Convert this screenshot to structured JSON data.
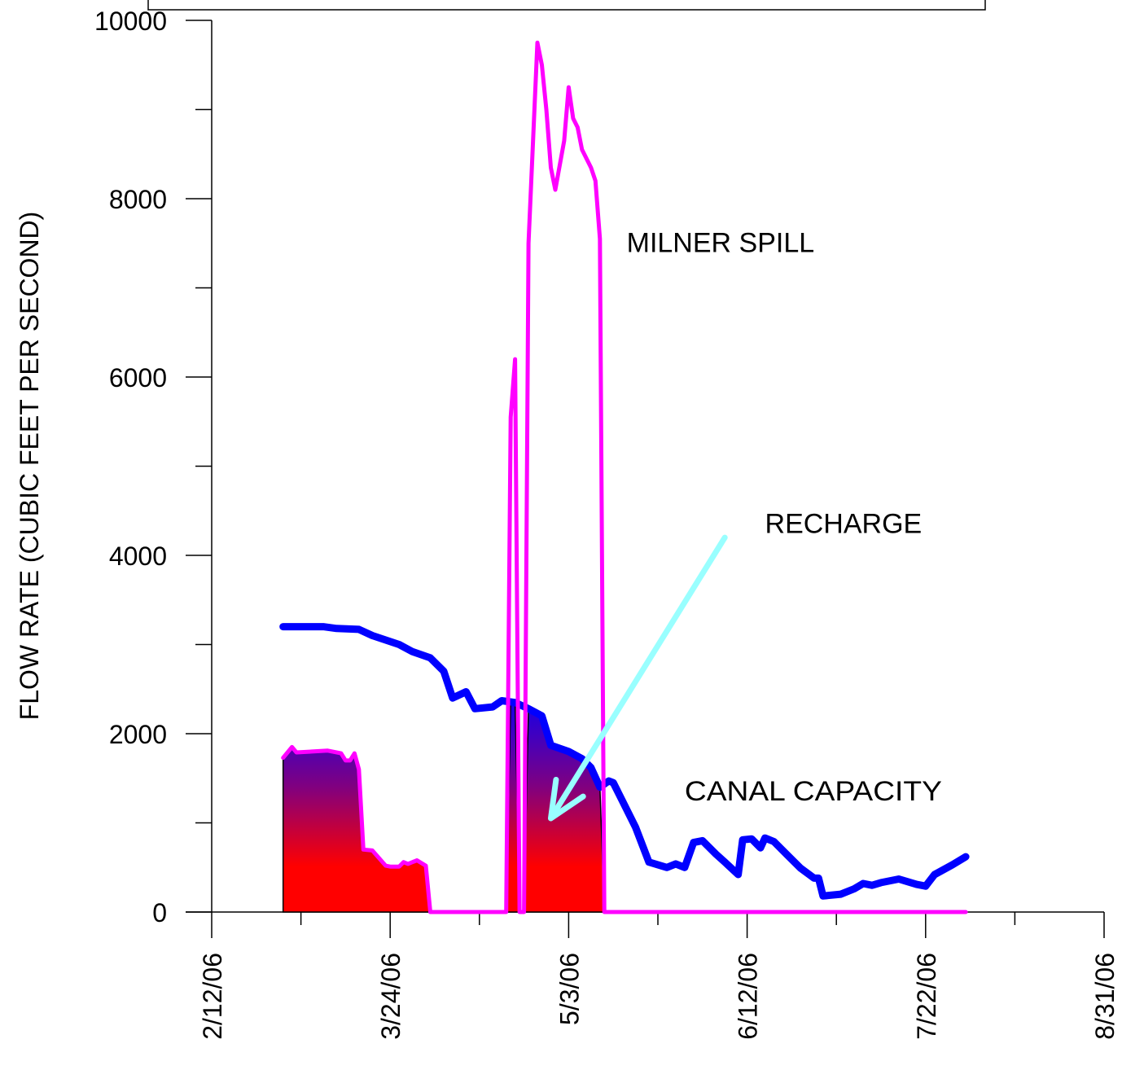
{
  "chart_data": {
    "type": "area",
    "title": "",
    "xlabel": "",
    "ylabel": "FLOW RATE  (CUBIC FEET PER SECOND)",
    "x_axis": {
      "type": "date",
      "min": "2006-02-12",
      "max": "2006-08-31",
      "tick_labels": [
        "2/12/06",
        "3/24/06",
        "5/3/06",
        "6/12/06",
        "7/22/06",
        "8/31/06"
      ],
      "tick_dates": [
        "2006-02-12",
        "2006-03-24",
        "2006-05-03",
        "2006-06-12",
        "2006-07-22",
        "2006-08-31"
      ]
    },
    "y_axis": {
      "min": 0,
      "max": 10000,
      "tick_labels": [
        "0",
        "2000",
        "4000",
        "6000",
        "8000",
        "10000"
      ],
      "tick_values": [
        0,
        2000,
        4000,
        6000,
        8000,
        10000
      ]
    },
    "grid": false,
    "series": [
      {
        "name": "CANAL CAPACITY",
        "color": "#0000ff",
        "points": [
          [
            "2006-02-28",
            3200
          ],
          [
            "2006-03-04",
            3200
          ],
          [
            "2006-03-09",
            3200
          ],
          [
            "2006-03-12",
            3180
          ],
          [
            "2006-03-17",
            3170
          ],
          [
            "2006-03-20",
            3100
          ],
          [
            "2006-03-26",
            3000
          ],
          [
            "2006-03-29",
            2920
          ],
          [
            "2006-04-02",
            2850
          ],
          [
            "2006-04-05",
            2700
          ],
          [
            "2006-04-07",
            2400
          ],
          [
            "2006-04-10",
            2470
          ],
          [
            "2006-04-12",
            2280
          ],
          [
            "2006-04-16",
            2300
          ],
          [
            "2006-04-18",
            2370
          ],
          [
            "2006-04-21",
            2350
          ],
          [
            "2006-04-24",
            2280
          ],
          [
            "2006-04-27",
            2200
          ],
          [
            "2006-04-29",
            1870
          ],
          [
            "2006-05-03",
            1800
          ],
          [
            "2006-05-06",
            1720
          ],
          [
            "2006-05-08",
            1620
          ],
          [
            "2006-05-10",
            1400
          ],
          [
            "2006-05-12",
            1470
          ],
          [
            "2006-05-13",
            1450
          ],
          [
            "2006-05-15",
            1250
          ],
          [
            "2006-05-18",
            950
          ],
          [
            "2006-05-21",
            560
          ],
          [
            "2006-05-25",
            500
          ],
          [
            "2006-05-27",
            540
          ],
          [
            "2006-05-29",
            500
          ],
          [
            "2006-05-31",
            780
          ],
          [
            "2006-06-02",
            800
          ],
          [
            "2006-06-05",
            650
          ],
          [
            "2006-06-07",
            560
          ],
          [
            "2006-06-10",
            420
          ],
          [
            "2006-06-11",
            810
          ],
          [
            "2006-06-13",
            820
          ],
          [
            "2006-06-15",
            720
          ],
          [
            "2006-06-16",
            830
          ],
          [
            "2006-06-18",
            790
          ],
          [
            "2006-06-21",
            640
          ],
          [
            "2006-06-24",
            490
          ],
          [
            "2006-06-27",
            380
          ],
          [
            "2006-06-28",
            380
          ],
          [
            "2006-06-29",
            180
          ],
          [
            "2006-07-03",
            200
          ],
          [
            "2006-07-06",
            260
          ],
          [
            "2006-07-08",
            320
          ],
          [
            "2006-07-10",
            300
          ],
          [
            "2006-07-12",
            330
          ],
          [
            "2006-07-16",
            370
          ],
          [
            "2006-07-18",
            340
          ],
          [
            "2006-07-20",
            310
          ],
          [
            "2006-07-22",
            290
          ],
          [
            "2006-07-24",
            420
          ],
          [
            "2006-07-28",
            530
          ],
          [
            "2006-07-31",
            620
          ]
        ]
      },
      {
        "name": "MILNER SPILL",
        "color": "#ff00ff",
        "points": [
          [
            "2006-02-28",
            1730
          ],
          [
            "2006-03-02",
            1850
          ],
          [
            "2006-03-03",
            1790
          ],
          [
            "2006-03-10",
            1810
          ],
          [
            "2006-03-13",
            1780
          ],
          [
            "2006-03-14",
            1700
          ],
          [
            "2006-03-15",
            1700
          ],
          [
            "2006-03-16",
            1780
          ],
          [
            "2006-03-17",
            1600
          ],
          [
            "2006-03-18",
            700
          ],
          [
            "2006-03-20",
            690
          ],
          [
            "2006-03-23",
            520
          ],
          [
            "2006-03-24",
            510
          ],
          [
            "2006-03-26",
            510
          ],
          [
            "2006-03-27",
            560
          ],
          [
            "2006-03-28",
            540
          ],
          [
            "2006-03-30",
            580
          ],
          [
            "2006-04-01",
            520
          ],
          [
            "2006-04-02",
            0
          ],
          [
            "2006-04-19",
            0
          ],
          [
            "2006-04-20",
            5550
          ],
          [
            "2006-04-21",
            6200
          ],
          [
            "2006-04-22",
            0
          ],
          [
            "2006-04-23",
            0
          ],
          [
            "2006-04-24",
            7500
          ],
          [
            "2006-04-26",
            9750
          ],
          [
            "2006-04-27",
            9500
          ],
          [
            "2006-04-28",
            9000
          ],
          [
            "2006-04-29",
            8350
          ],
          [
            "2006-04-30",
            8100
          ],
          [
            "2006-05-02",
            8650
          ],
          [
            "2006-05-03",
            9250
          ],
          [
            "2006-05-04",
            8900
          ],
          [
            "2006-05-05",
            8800
          ],
          [
            "2006-05-06",
            8550
          ],
          [
            "2006-05-08",
            8350
          ],
          [
            "2006-05-09",
            8200
          ],
          [
            "2006-05-10",
            7550
          ],
          [
            "2006-05-11",
            0
          ],
          [
            "2006-07-31",
            0
          ]
        ]
      },
      {
        "name": "RECHARGE",
        "fill": "gradient",
        "points": [
          [
            "2006-02-28",
            1730
          ],
          [
            "2006-03-02",
            1850
          ],
          [
            "2006-03-03",
            1790
          ],
          [
            "2006-03-10",
            1810
          ],
          [
            "2006-03-13",
            1780
          ],
          [
            "2006-03-14",
            1700
          ],
          [
            "2006-03-15",
            1700
          ],
          [
            "2006-03-16",
            1780
          ],
          [
            "2006-03-17",
            1600
          ],
          [
            "2006-03-18",
            700
          ],
          [
            "2006-03-20",
            690
          ],
          [
            "2006-03-23",
            520
          ],
          [
            "2006-03-24",
            510
          ],
          [
            "2006-03-26",
            510
          ],
          [
            "2006-03-27",
            560
          ],
          [
            "2006-03-28",
            540
          ],
          [
            "2006-03-30",
            580
          ],
          [
            "2006-04-01",
            520
          ],
          [
            "2006-04-02",
            0
          ],
          [
            "2006-04-19",
            0
          ],
          [
            "2006-04-20",
            2370
          ],
          [
            "2006-04-21",
            2370
          ],
          [
            "2006-04-22",
            0
          ],
          [
            "2006-04-23",
            0
          ],
          [
            "2006-04-24",
            2300
          ],
          [
            "2006-04-27",
            2200
          ],
          [
            "2006-04-29",
            1870
          ],
          [
            "2006-05-03",
            1800
          ],
          [
            "2006-05-06",
            1720
          ],
          [
            "2006-05-08",
            1620
          ],
          [
            "2006-05-10",
            1400
          ],
          [
            "2006-05-11",
            0
          ]
        ]
      }
    ],
    "annotations": [
      {
        "text": "MILNER SPILL",
        "x": "2006-05-16",
        "y": 7400
      },
      {
        "text": "RECHARGE",
        "x": "2006-06-16",
        "y": 4250
      },
      {
        "text": "CANAL CAPACITY",
        "x": "2006-05-29",
        "y": 1250
      }
    ],
    "arrow": {
      "color": "#99ffff",
      "from": [
        "2006-06-07",
        4200
      ],
      "to": [
        "2006-04-29",
        1050
      ]
    }
  }
}
